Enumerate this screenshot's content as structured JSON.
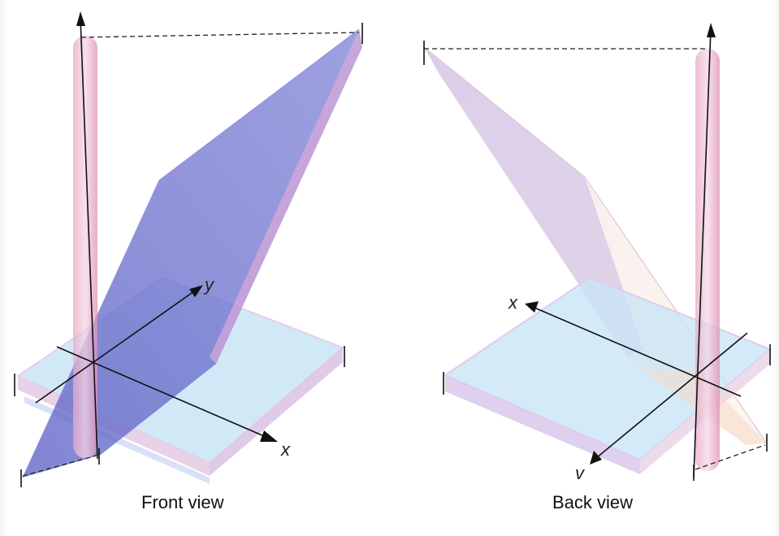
{
  "views": [
    {
      "caption": "Front view",
      "axis_labels": {
        "horizontal": "x",
        "depth": "y"
      }
    },
    {
      "caption": "Back view",
      "axis_labels": {
        "horizontal": "x",
        "depth": "v"
      }
    }
  ],
  "colors": {
    "slab_top": "#c9e4f6",
    "slab_edge_pink": "#e9cfe6",
    "plane_blue": "#6f73cf",
    "plane_cream": "#fbf4e6",
    "rod_pink": "#e28fb5",
    "axis": "#111111"
  }
}
